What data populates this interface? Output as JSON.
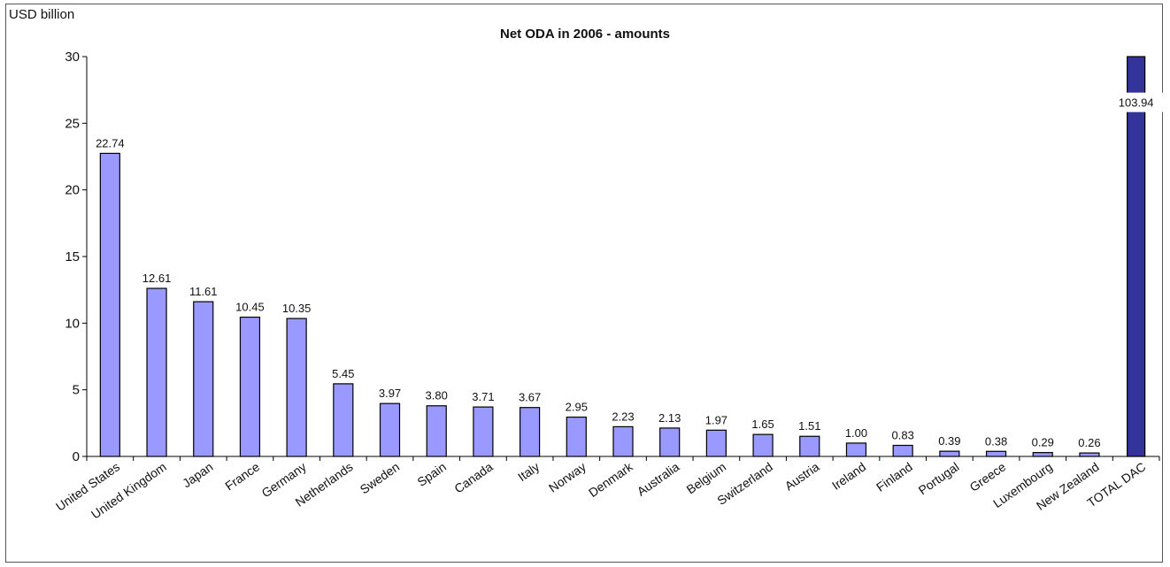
{
  "chart_data": {
    "type": "bar",
    "title": "Net ODA in 2006 - amounts",
    "ylabel": "USD billion",
    "xlabel": "",
    "ylim": [
      0,
      30
    ],
    "yticks": [
      0,
      5,
      10,
      15,
      20,
      25,
      30
    ],
    "grid": false,
    "legend": "none",
    "categories": [
      "United States",
      "United Kingdom",
      "Japan",
      "France",
      "Germany",
      "Netherlands",
      "Sweden",
      "Spain",
      "Canada",
      "Italy",
      "Norway",
      "Denmark",
      "Australia",
      "Belgium",
      "Switzerland",
      "Austria",
      "Ireland",
      "Finland",
      "Portugal",
      "Greece",
      "Luxembourg",
      "New Zealand",
      "TOTAL DAC"
    ],
    "values": [
      22.74,
      12.61,
      11.61,
      10.45,
      10.35,
      5.45,
      3.97,
      3.8,
      3.71,
      3.67,
      2.95,
      2.23,
      2.13,
      1.97,
      1.65,
      1.51,
      1.0,
      0.83,
      0.39,
      0.38,
      0.29,
      0.26,
      103.94
    ],
    "value_labels": [
      "22.74",
      "12.61",
      "11.61",
      "10.45",
      "10.35",
      "5.45",
      "3.97",
      "3.80",
      "3.71",
      "3.67",
      "2.95",
      "2.23",
      "2.13",
      "1.97",
      "1.65",
      "1.51",
      "1.00",
      "0.83",
      "0.39",
      "0.38",
      "0.29",
      "0.26",
      "103.94"
    ],
    "colors": {
      "bar": "#9999ff",
      "bar_edge": "#000000",
      "total_bar": "#333399"
    }
  }
}
